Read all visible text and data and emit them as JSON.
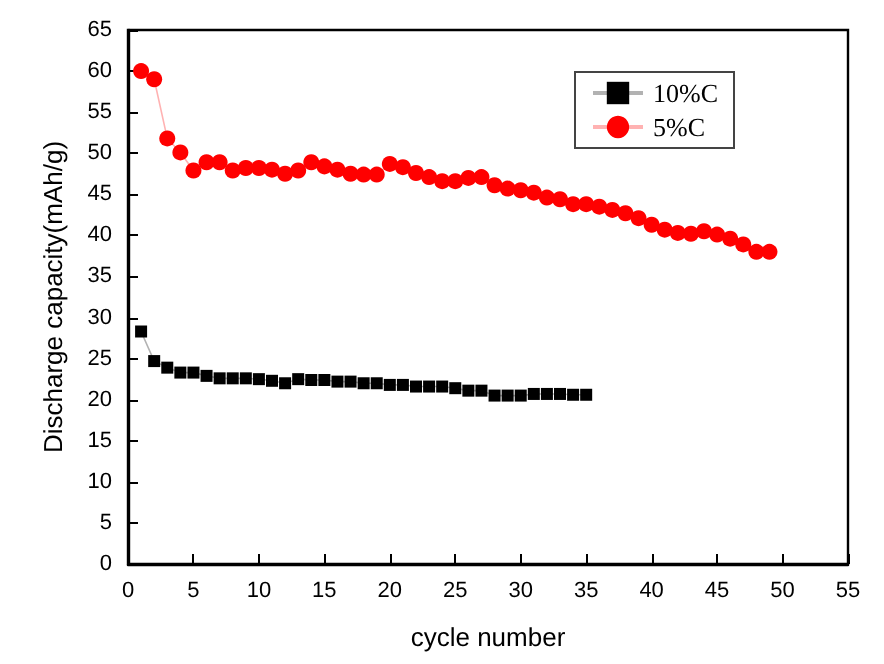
{
  "chart_data": {
    "type": "line",
    "xlabel": "cycle number",
    "ylabel": "Discharge capacity(mAh/g)",
    "xlim": [
      0,
      55
    ],
    "xticks": [
      0,
      5,
      10,
      15,
      20,
      25,
      30,
      35,
      40,
      45,
      50,
      55
    ],
    "ylim": [
      0,
      65
    ],
    "yticks": [
      0,
      5,
      10,
      15,
      20,
      25,
      30,
      35,
      40,
      45,
      50,
      55,
      60,
      65
    ],
    "grid": false,
    "legend": "top right",
    "series": [
      {
        "name": "10%C",
        "color": "#000000",
        "marker": "square",
        "x": [
          1,
          2,
          3,
          4,
          5,
          6,
          7,
          8,
          9,
          10,
          11,
          12,
          13,
          14,
          15,
          16,
          17,
          18,
          19,
          20,
          21,
          22,
          23,
          24,
          25,
          26,
          27,
          28,
          29,
          30,
          31,
          32,
          33,
          34,
          35
        ],
        "values": [
          28.3,
          24.7,
          23.9,
          23.3,
          23.3,
          22.9,
          22.6,
          22.6,
          22.6,
          22.5,
          22.3,
          22.0,
          22.5,
          22.4,
          22.4,
          22.2,
          22.2,
          22.0,
          22.0,
          21.8,
          21.8,
          21.6,
          21.6,
          21.6,
          21.4,
          21.1,
          21.1,
          20.5,
          20.5,
          20.5,
          20.7,
          20.7,
          20.7,
          20.6,
          20.6
        ]
      },
      {
        "name": "5%C",
        "color": "#ff0000",
        "marker": "circle",
        "x": [
          1,
          2,
          3,
          4,
          5,
          6,
          7,
          8,
          9,
          10,
          11,
          12,
          13,
          14,
          15,
          16,
          17,
          18,
          19,
          20,
          21,
          22,
          23,
          24,
          25,
          26,
          27,
          28,
          29,
          30,
          31,
          32,
          33,
          34,
          35,
          36,
          37,
          38,
          39,
          40,
          41,
          42,
          43,
          44,
          45,
          46,
          47,
          48,
          49
        ],
        "values": [
          60.0,
          59.0,
          51.8,
          50.1,
          47.9,
          48.9,
          48.9,
          47.9,
          48.2,
          48.2,
          48.0,
          47.5,
          47.9,
          48.9,
          48.4,
          48.0,
          47.5,
          47.4,
          47.4,
          48.7,
          48.3,
          47.6,
          47.1,
          46.6,
          46.6,
          47.0,
          47.1,
          46.1,
          45.7,
          45.5,
          45.2,
          44.6,
          44.4,
          43.8,
          43.8,
          43.5,
          43.1,
          42.7,
          42.1,
          41.3,
          40.7,
          40.3,
          40.2,
          40.5,
          40.1,
          39.6,
          38.9,
          38.0,
          38.0
        ]
      }
    ]
  }
}
